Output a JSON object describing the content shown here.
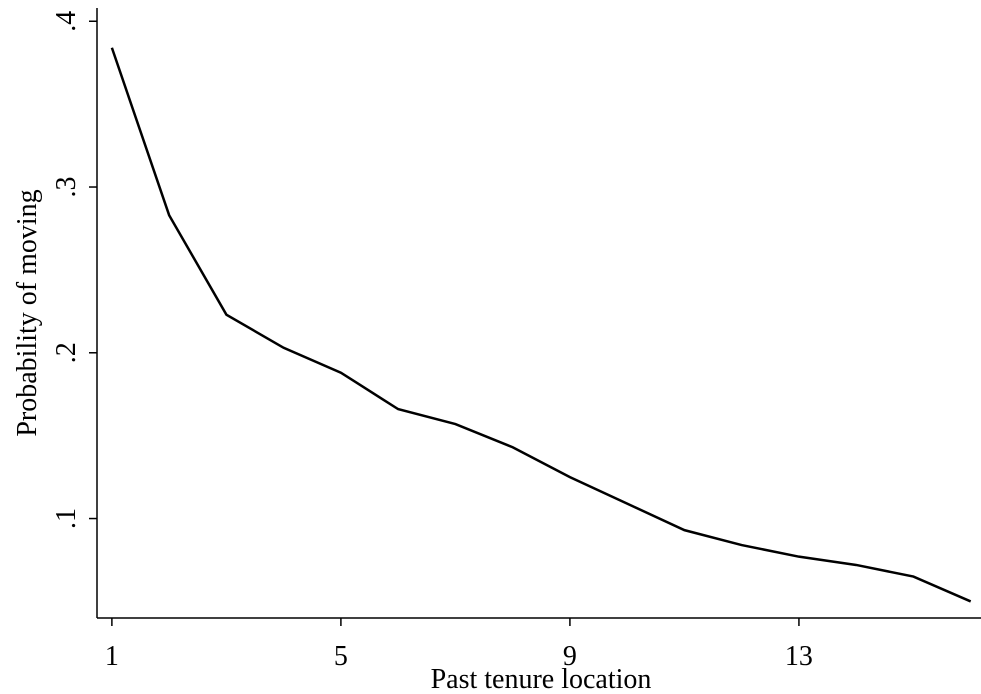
{
  "chart_data": {
    "type": "line",
    "x_label": "Past tenure location",
    "y_label": "Probability of moving",
    "x": [
      1,
      2,
      3,
      4,
      5,
      6,
      7,
      8,
      9,
      10,
      11,
      12,
      13,
      14,
      15,
      16
    ],
    "series": [
      {
        "color": "#000000",
        "values": [
          0.384,
          0.283,
          0.223,
          0.203,
          0.188,
          0.166,
          0.157,
          0.143,
          0.125,
          0.109,
          0.093,
          0.084,
          0.077,
          0.072,
          0.065,
          0.05
        ]
      }
    ],
    "xlim": [
      0.74,
      16.18
    ],
    "ylim": [
      0.04,
      0.408
    ],
    "xticks": [
      1,
      5,
      9,
      13
    ],
    "yticks": [
      {
        "value": 0.1,
        "label": ".1"
      },
      {
        "value": 0.2,
        "label": ".2"
      },
      {
        "value": 0.3,
        "label": ".3"
      },
      {
        "value": 0.4,
        "label": ".4"
      }
    ],
    "grid": false
  }
}
